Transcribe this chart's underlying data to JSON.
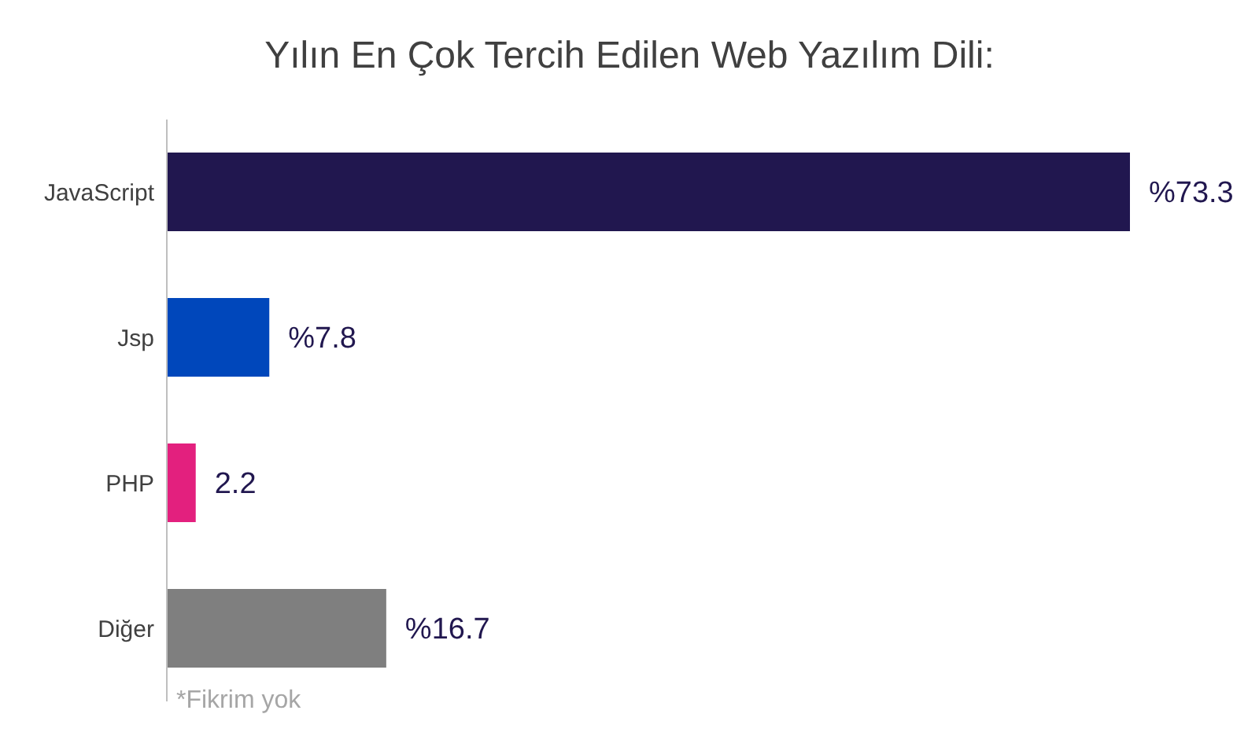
{
  "chart_data": {
    "type": "bar",
    "orientation": "horizontal",
    "title": "Yılın En Çok Tercih Edilen Web Yazılım Dili:",
    "categories": [
      "JavaScript",
      "Jsp",
      "PHP",
      "Diğer"
    ],
    "values": [
      73.3,
      7.8,
      2.2,
      16.7
    ],
    "colors": [
      "#21174f",
      "#0047bb",
      "#e3207e",
      "#7f7f7f"
    ],
    "value_labels": [
      "%73.3",
      "%7.8",
      "2.2",
      "%16.7"
    ],
    "annotations": [
      "*Fikrim yok"
    ],
    "grid": false,
    "legend": false
  }
}
